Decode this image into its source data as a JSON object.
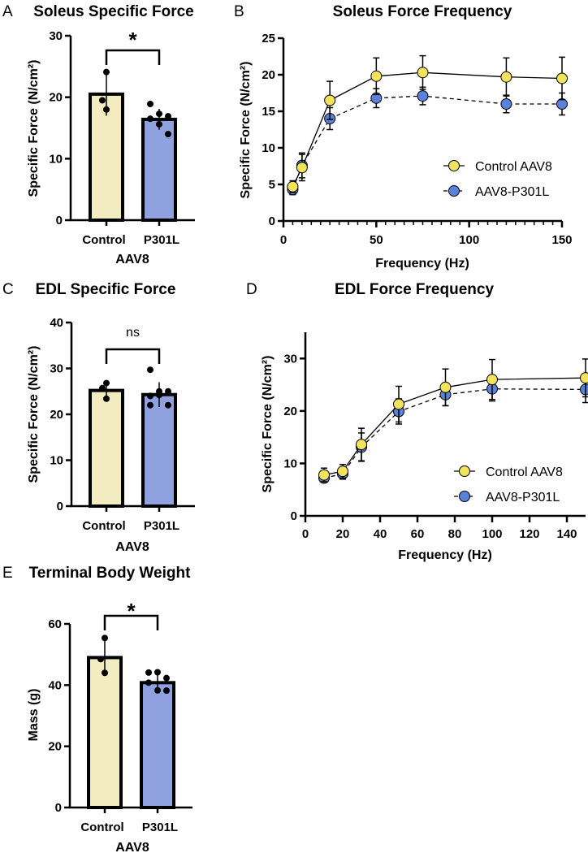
{
  "colors": {
    "control_bar": "#f3ecc0",
    "p301l_bar": "#8fa1df",
    "control_marker": "#f1e35c",
    "p301l_marker": "#5b82da",
    "ink": "#000000"
  },
  "chart_data": [
    {
      "panel": "A",
      "type": "bar",
      "title": "Soleus Specific Force",
      "ylabel": "Specific Force (N/cm²)",
      "xlabel": "AAV8",
      "ylim": [
        0,
        30
      ],
      "yticks": [
        0,
        10,
        20,
        30
      ],
      "categories": [
        "Control",
        "P301L"
      ],
      "values": [
        20.5,
        16.4
      ],
      "errors": [
        3.5,
        1.7
      ],
      "points": [
        [
          24.1,
          19.5,
          18.0
        ],
        [
          18.9,
          17.3,
          16.9,
          16.5,
          15.6,
          14.0
        ]
      ],
      "significance": "*"
    },
    {
      "panel": "B",
      "type": "line",
      "title": "Soleus Force Frequency",
      "ylabel": "Specific Force (N/cm²)",
      "xlabel": "Frequency (Hz)",
      "xlim": [
        0,
        150
      ],
      "ylim": [
        0,
        25
      ],
      "xticks": [
        0,
        50,
        100,
        150
      ],
      "yticks": [
        0,
        5,
        10,
        15,
        20,
        25
      ],
      "legend": "right",
      "x": [
        5,
        10,
        25,
        50,
        75,
        120,
        150
      ],
      "series": [
        {
          "name": "Control AAV8",
          "style": "solid",
          "values": [
            4.7,
            7.3,
            16.5,
            19.8,
            20.3,
            19.7,
            19.5
          ],
          "errors": [
            0.8,
            1.8,
            2.6,
            2.5,
            2.3,
            2.6,
            2.9
          ]
        },
        {
          "name": "AAV8-P301L",
          "style": "dashed",
          "values": [
            4.3,
            7.6,
            14.0,
            16.8,
            17.1,
            16.0,
            16.0
          ],
          "errors": [
            0.7,
            1.7,
            1.5,
            1.3,
            1.2,
            1.2,
            1.5
          ]
        }
      ]
    },
    {
      "panel": "C",
      "type": "bar",
      "title": "EDL Specific Force",
      "ylabel": "Specific Force (N/cm²)",
      "xlabel": "AAV8",
      "ylim": [
        0,
        40
      ],
      "yticks": [
        0,
        10,
        20,
        30,
        40
      ],
      "categories": [
        "Control",
        "P301L"
      ],
      "values": [
        25.2,
        24.3
      ],
      "errors": [
        1.8,
        2.7
      ],
      "points": [
        [
          26.8,
          25.7,
          23.4
        ],
        [
          29.7,
          25.0,
          25.0,
          24.0,
          24.2,
          22.0,
          22.0
        ]
      ],
      "significance": "ns"
    },
    {
      "panel": "D",
      "type": "line",
      "title": "EDL Force Frequency",
      "ylabel": "Specific Force (N/cm²)",
      "xlabel": "Frequency (Hz)",
      "xlim": [
        0,
        150
      ],
      "ylim": [
        0,
        35
      ],
      "xticks": [
        0,
        20,
        40,
        60,
        80,
        100,
        120,
        140
      ],
      "yticks": [
        0,
        10,
        20,
        30
      ],
      "legend": "right",
      "x": [
        10,
        20,
        30,
        50,
        75,
        100,
        150
      ],
      "series": [
        {
          "name": "Control AAV8",
          "style": "solid",
          "values": [
            7.8,
            8.5,
            13.6,
            21.3,
            24.5,
            26.0,
            26.3
          ],
          "errors": [
            1.3,
            1.3,
            3.1,
            3.4,
            3.5,
            3.8,
            3.6
          ]
        },
        {
          "name": "AAV8-P301L",
          "style": "dashed",
          "values": [
            7.2,
            8.0,
            13.1,
            19.9,
            23.1,
            24.2,
            24.1
          ],
          "errors": [
            0.7,
            1.0,
            2.7,
            2.4,
            2.1,
            2.3,
            2.5
          ]
        }
      ]
    },
    {
      "panel": "E",
      "type": "bar",
      "title": "Terminal Body Weight",
      "ylabel": "Mass (g)",
      "xlabel": "AAV8",
      "ylim": [
        0,
        60
      ],
      "yticks": [
        0,
        20,
        40,
        60
      ],
      "categories": [
        "Control",
        "P301L"
      ],
      "values": [
        49.0,
        40.8
      ],
      "errors": [
        5.7,
        2.9
      ],
      "points": [
        [
          55.4,
          48.5,
          44.0
        ],
        [
          44.1,
          44.2,
          42.3,
          40.8,
          38.3,
          38.2
        ]
      ],
      "significance": "*"
    }
  ]
}
